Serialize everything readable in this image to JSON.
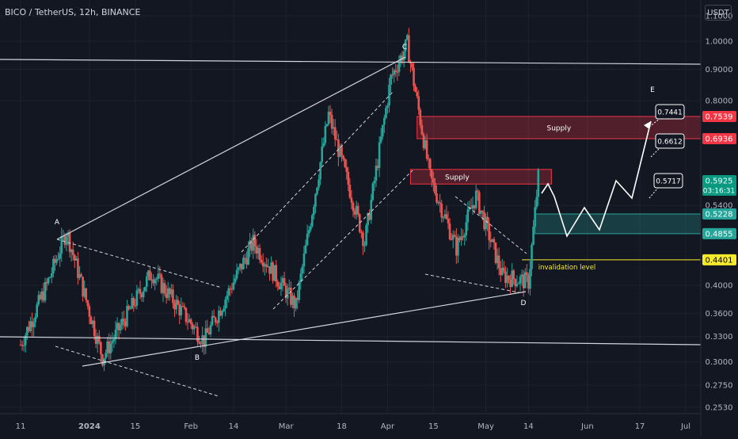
{
  "header": {
    "title": "BICO / TetherUS, 12h, BINANCE"
  },
  "currency": "USDT",
  "chart_data": {
    "type": "candlestick",
    "symbol": "BICO / TetherUS",
    "interval": "12h",
    "exchange": "BINANCE",
    "y_scale": "log",
    "ylim": [
      0.24,
      1.18
    ],
    "y_ticks": [
      "1.1000",
      "1.0000",
      "0.9000",
      "0.8000",
      "0.5400",
      "0.4000",
      "0.3600",
      "0.3300",
      "0.3000",
      "0.2750",
      "0.2530"
    ],
    "x_ticks": [
      "11",
      "2024",
      "15",
      "Feb",
      "14",
      "Mar",
      "18",
      "Apr",
      "15",
      "May",
      "14",
      "Jun",
      "17",
      "Jul"
    ],
    "price_tags": [
      {
        "label": "0.7539",
        "color": "#f23645",
        "text_color": "#ffffff"
      },
      {
        "label": "0.6936",
        "color": "#f23645",
        "text_color": "#ffffff"
      },
      {
        "label": "0.5925",
        "sub": "03:16:31",
        "color": "#089981",
        "text_color": "#ffffff"
      },
      {
        "label": "0.5228",
        "color": "#26a69a",
        "text_color": "#ffffff"
      },
      {
        "label": "0.4855",
        "color": "#26a69a",
        "text_color": "#ffffff"
      },
      {
        "label": "0.4401",
        "color": "#f7ea2a",
        "text_color": "#000000"
      }
    ],
    "wave_labels": [
      "A",
      "B",
      "C",
      "D",
      "E"
    ],
    "zones": [
      {
        "name": "Supply",
        "low": 0.6936,
        "high": 0.7539,
        "type": "supply"
      },
      {
        "name": "Supply",
        "low": 0.585,
        "high": 0.618,
        "type": "supply"
      },
      {
        "name": "",
        "low": 0.4855,
        "high": 0.5228,
        "type": "demand"
      }
    ],
    "invalidation": {
      "label": "invalidation level",
      "price": 0.4401
    },
    "target_callouts": [
      "0.7441",
      "0.6612",
      "0.5717"
    ],
    "ohlc": {
      "cycles": 2.5,
      "comment_seeded_series_anchor_points": [
        [
          "2023-12-11",
          0.32
        ],
        [
          "2023-12-19",
          0.4
        ],
        [
          "2023-12-25",
          0.49
        ],
        [
          "2024-01-05",
          0.305
        ],
        [
          "2024-01-20",
          0.42
        ],
        [
          "2024-02-05",
          0.325
        ],
        [
          "2024-02-20",
          0.47
        ],
        [
          "2024-03-04",
          0.37
        ],
        [
          "2024-03-14",
          0.76
        ],
        [
          "2024-03-25",
          0.47
        ],
        [
          "2024-04-02",
          0.87
        ],
        [
          "2024-04-07",
          0.99
        ],
        [
          "2024-04-14",
          0.6
        ],
        [
          "2024-04-22",
          0.46
        ],
        [
          "2024-04-28",
          0.56
        ],
        [
          "2024-05-06",
          0.415
        ],
        [
          "2024-05-14",
          0.405
        ],
        [
          "2024-05-17",
          0.6
        ]
      ]
    }
  }
}
